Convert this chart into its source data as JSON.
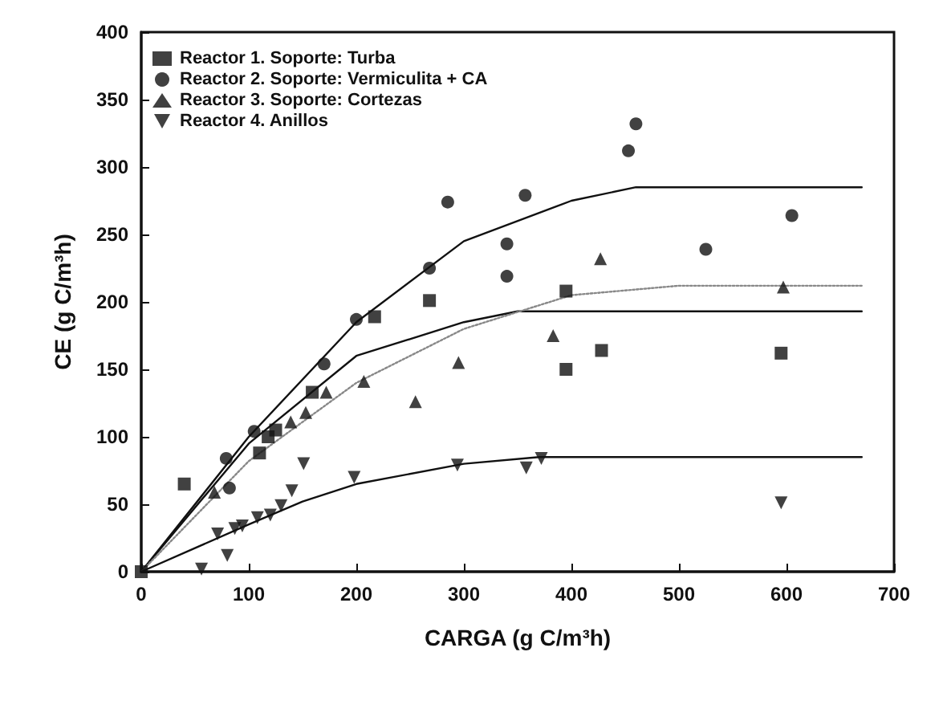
{
  "chart_data": {
    "type": "scatter",
    "xlabel": "CARGA (g C/m³h)",
    "ylabel": "CE (g C/m³h)",
    "xlim": [
      0,
      700
    ],
    "xticks": [
      0,
      100,
      200,
      300,
      400,
      500,
      600,
      700
    ],
    "ylim": [
      0,
      400
    ],
    "yticks": [
      0,
      50,
      100,
      150,
      200,
      250,
      300,
      350,
      400
    ],
    "grid": false,
    "legend": "top left",
    "series": [
      {
        "name": "Reactor 1. Soporte: Turba",
        "color": "#111111",
        "marker": "square",
        "x": [
          0,
          40,
          110,
          118,
          125,
          159,
          217,
          268,
          395,
          395,
          428,
          595
        ],
        "values": [
          0,
          65,
          88,
          100,
          105,
          133,
          189,
          201,
          208,
          150,
          164,
          162
        ]
      },
      {
        "name": "Reactor 2. Soporte: Vermiculita + CA",
        "color": "#111111",
        "marker": "circle",
        "x": [
          82,
          79,
          105,
          170,
          200,
          268,
          285,
          340,
          340,
          357,
          453,
          460,
          525,
          605
        ],
        "values": [
          62,
          84,
          104,
          154,
          187,
          225,
          274,
          243,
          219,
          279,
          312,
          332,
          239,
          264
        ]
      },
      {
        "name": "Reactor 3. Soporte: Cortezas",
        "color": "#111111",
        "marker": "triangle",
        "x": [
          68,
          139,
          153,
          172,
          207,
          255,
          295,
          383,
          427,
          597
        ],
        "values": [
          59,
          111,
          118,
          133,
          141,
          126,
          155,
          175,
          232,
          211
        ]
      },
      {
        "name": "Reactor 4. Anillos",
        "color": "#111111",
        "marker": "triangle-down",
        "x": [
          56,
          80,
          71,
          87,
          94,
          108,
          120,
          130,
          140,
          151,
          198,
          294,
          358,
          372,
          595
        ],
        "values": [
          2,
          12,
          28,
          32,
          34,
          40,
          42,
          49,
          60,
          80,
          70,
          79,
          77,
          84,
          51
        ]
      },
      {
        "type": "line",
        "color": "#111111",
        "line_style": "solid",
        "marker": "none",
        "x": [
          0,
          100,
          200,
          300,
          400,
          460,
          670
        ],
        "values": [
          0,
          100,
          185,
          245,
          275,
          285,
          285
        ]
      },
      {
        "type": "line",
        "color": "#111111",
        "line_style": "solid",
        "marker": "none",
        "x": [
          0,
          100,
          200,
          300,
          350,
          670
        ],
        "values": [
          0,
          95,
          160,
          185,
          193,
          193
        ]
      },
      {
        "type": "line",
        "color": "#888888",
        "line_style": "dotted",
        "marker": "none",
        "x": [
          0,
          100,
          200,
          300,
          400,
          500,
          670
        ],
        "values": [
          0,
          82,
          140,
          180,
          205,
          212,
          212
        ]
      },
      {
        "type": "line",
        "color": "#111111",
        "line_style": "solid",
        "marker": "none",
        "x": [
          0,
          100,
          150,
          200,
          300,
          370,
          670
        ],
        "values": [
          0,
          35,
          52,
          65,
          80,
          85,
          85
        ]
      }
    ]
  }
}
